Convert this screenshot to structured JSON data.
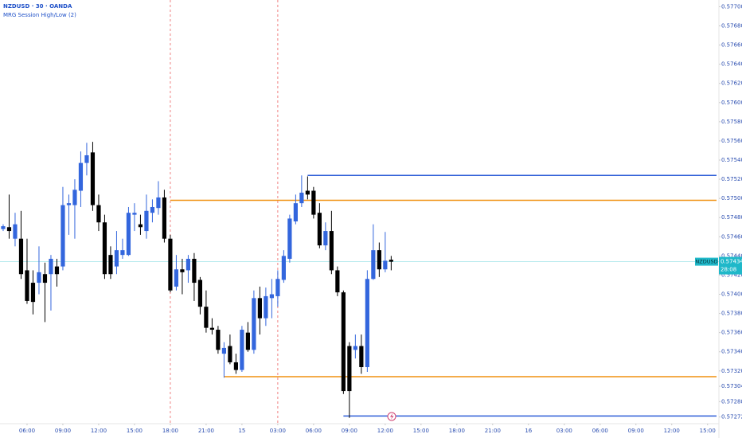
{
  "chart_data": {
    "type": "candlestick",
    "title": "NZDUSD · 30 · OANDA",
    "subtitle": "MRG Session High/Low (2)",
    "x": [
      0,
      1,
      2,
      3,
      4,
      5,
      6,
      7,
      8,
      9,
      10,
      11,
      12,
      13,
      14,
      15,
      16,
      17,
      18,
      19,
      20,
      21,
      22,
      23,
      24,
      25,
      26,
      27,
      28,
      29,
      30,
      31,
      32,
      33,
      34,
      35,
      36,
      37,
      38,
      39,
      40,
      41,
      42,
      43,
      44,
      45,
      46,
      47,
      48,
      49,
      50,
      51,
      52,
      53,
      54,
      55,
      56,
      57,
      58,
      59,
      60,
      61,
      62,
      63,
      64,
      65
    ],
    "open": [
      0.57468,
      0.5747,
      0.57458,
      0.57458,
      0.57425,
      0.57412,
      0.57412,
      0.57421,
      0.57421,
      0.57429,
      0.57429,
      0.57493,
      0.57493,
      0.57508,
      0.57537,
      0.57548,
      0.57493,
      0.57475,
      0.57441,
      0.57429,
      0.57441,
      0.57441,
      0.57483,
      0.57473,
      0.57466,
      0.57485,
      0.5749,
      0.57501,
      0.57458,
      0.57408,
      0.57426,
      0.57425,
      0.57437,
      0.57415,
      0.57387,
      0.57365,
      0.57363,
      0.57338,
      0.57346,
      0.57329,
      0.57321,
      0.5736,
      0.57342,
      0.57396,
      0.57375,
      0.57396,
      0.57398,
      0.57415,
      0.57437,
      0.57476,
      0.57495,
      0.57508,
      0.57508,
      0.57485,
      0.57451,
      0.57466,
      0.57425,
      0.57402,
      0.57346,
      0.57342,
      0.57346,
      0.57324,
      0.57416,
      0.57446,
      0.57426,
      0.57436
    ],
    "high": [
      0.57473,
      0.57504,
      0.57485,
      0.57487,
      0.57458,
      0.57425,
      0.5745,
      0.57433,
      0.57441,
      0.57437,
      0.57512,
      0.57504,
      0.5752,
      0.57549,
      0.57558,
      0.57559,
      0.57504,
      0.57483,
      0.5745,
      0.57466,
      0.57458,
      0.57491,
      0.57495,
      0.57483,
      0.57504,
      0.57499,
      0.57518,
      0.57509,
      0.57462,
      0.57441,
      0.57437,
      0.57441,
      0.57443,
      0.57418,
      0.57404,
      0.57375,
      0.57367,
      0.5735,
      0.57358,
      0.57338,
      0.57367,
      0.57371,
      0.57404,
      0.57408,
      0.57407,
      0.57416,
      0.57425,
      0.57446,
      0.57483,
      0.57504,
      0.57524,
      0.57523,
      0.57512,
      0.57495,
      0.57475,
      0.57487,
      0.57429,
      0.57404,
      0.5735,
      0.57358,
      0.57358,
      0.57425,
      0.57473,
      0.57454,
      0.57465,
      0.5744
    ],
    "low": [
      0.57466,
      0.57458,
      0.5745,
      0.57416,
      0.5739,
      0.57379,
      0.574,
      0.57371,
      0.57383,
      0.57408,
      0.57425,
      0.57462,
      0.57458,
      0.57491,
      0.57524,
      0.57487,
      0.57466,
      0.57416,
      0.57416,
      0.57421,
      0.57437,
      0.5744,
      0.57466,
      0.57462,
      0.57458,
      0.57475,
      0.57483,
      0.57454,
      0.57402,
      0.57404,
      0.574,
      0.57412,
      0.57393,
      0.57379,
      0.5736,
      0.57358,
      0.57338,
      0.57313,
      0.57327,
      0.57317,
      0.57319,
      0.5734,
      0.57338,
      0.57358,
      0.57367,
      0.57375,
      0.57387,
      0.57412,
      0.57433,
      0.57473,
      0.57491,
      0.57499,
      0.57479,
      0.57448,
      0.57446,
      0.57421,
      0.57398,
      0.57296,
      0.57271,
      0.57333,
      0.57317,
      0.57319,
      0.57415,
      0.57418,
      0.57423,
      0.57425
    ],
    "close": [
      0.57471,
      0.57466,
      0.57473,
      0.57421,
      0.57393,
      0.57392,
      0.57423,
      0.57412,
      0.57437,
      0.57421,
      0.57493,
      0.57495,
      0.57509,
      0.57537,
      0.57545,
      0.57493,
      0.57475,
      0.57421,
      0.57421,
      0.57446,
      0.57446,
      0.57485,
      0.57485,
      0.5747,
      0.57487,
      0.57491,
      0.57501,
      0.57458,
      0.57404,
      0.57426,
      0.57423,
      0.57437,
      0.57412,
      0.57387,
      0.57365,
      0.57363,
      0.57342,
      0.57344,
      0.57329,
      0.57321,
      0.57363,
      0.57342,
      0.57396,
      0.57375,
      0.57398,
      0.574,
      0.57416,
      0.5744,
      0.57479,
      0.57495,
      0.57506,
      0.57504,
      0.57483,
      0.57451,
      0.57466,
      0.57425,
      0.57402,
      0.57299,
      0.57299,
      0.57346,
      0.57324,
      0.57416,
      0.57446,
      0.57426,
      0.57435,
      0.57434
    ],
    "up_color": "#3366dd",
    "down_color": "#000000",
    "levels": [
      {
        "value": 0.57524,
        "x_start": 51,
        "color": "#2f5fd8"
      },
      {
        "value": 0.57498,
        "x_start": 28,
        "color": "#f0900f"
      },
      {
        "value": 0.57314,
        "x_start": 37,
        "color": "#f0900f"
      },
      {
        "value": 0.57273,
        "x_start": 57,
        "color": "#2f5fd8"
      }
    ],
    "session_lines": [
      28,
      46
    ],
    "session_line_color": "#f08080",
    "last_price": {
      "symbol": "NZDUSD",
      "value": 0.57434,
      "countdown": "28:08",
      "color": "#1fb8c9"
    },
    "xlim": [
      -0.53,
      119.5
    ],
    "ylim": [
      0.57265,
      0.57707
    ],
    "xticks": [
      {
        "value": 4,
        "label": "06:00"
      },
      {
        "value": 10,
        "label": "09:00"
      },
      {
        "value": 16,
        "label": "12:00"
      },
      {
        "value": 22,
        "label": "15:00"
      },
      {
        "value": 28,
        "label": "18:00"
      },
      {
        "value": 34,
        "label": "21:00"
      },
      {
        "value": 40,
        "label": "15"
      },
      {
        "value": 46,
        "label": "03:00"
      },
      {
        "value": 52,
        "label": "06:00"
      },
      {
        "value": 58,
        "label": "09:00"
      },
      {
        "value": 64,
        "label": "12:00"
      },
      {
        "value": 70,
        "label": "15:00"
      },
      {
        "value": 76,
        "label": "18:00"
      },
      {
        "value": 82,
        "label": "21:00"
      },
      {
        "value": 88,
        "label": "16"
      },
      {
        "value": 94,
        "label": "03:00"
      },
      {
        "value": 100,
        "label": "06:00"
      },
      {
        "value": 106,
        "label": "09:00"
      },
      {
        "value": 112,
        "label": "12:00"
      },
      {
        "value": 118,
        "label": "15:00"
      }
    ],
    "yticks": [
      {
        "value": 0.577,
        "label": "0.57700"
      },
      {
        "value": 0.5768,
        "label": "0.57680"
      },
      {
        "value": 0.5766,
        "label": "0.57660"
      },
      {
        "value": 0.5764,
        "label": "0.57640"
      },
      {
        "value": 0.5762,
        "label": "0.57620"
      },
      {
        "value": 0.576,
        "label": "0.57600"
      },
      {
        "value": 0.5758,
        "label": "0.57580"
      },
      {
        "value": 0.5756,
        "label": "0.57560"
      },
      {
        "value": 0.5754,
        "label": "0.57540"
      },
      {
        "value": 0.5752,
        "label": "0.57520"
      },
      {
        "value": 0.575,
        "label": "0.57500"
      },
      {
        "value": 0.5748,
        "label": "0.57480"
      },
      {
        "value": 0.5746,
        "label": "0.57460"
      },
      {
        "value": 0.5744,
        "label": "0.57440"
      },
      {
        "value": 0.5742,
        "label": "0.57420"
      },
      {
        "value": 0.574,
        "label": "0.57400"
      },
      {
        "value": 0.5738,
        "label": "0.57380"
      },
      {
        "value": 0.5736,
        "label": "0.57360"
      },
      {
        "value": 0.5734,
        "label": "0.57340"
      },
      {
        "value": 0.5732,
        "label": "0.57320"
      },
      0.57304,
      0.57288,
      0.57272
    ],
    "grid": false
  }
}
